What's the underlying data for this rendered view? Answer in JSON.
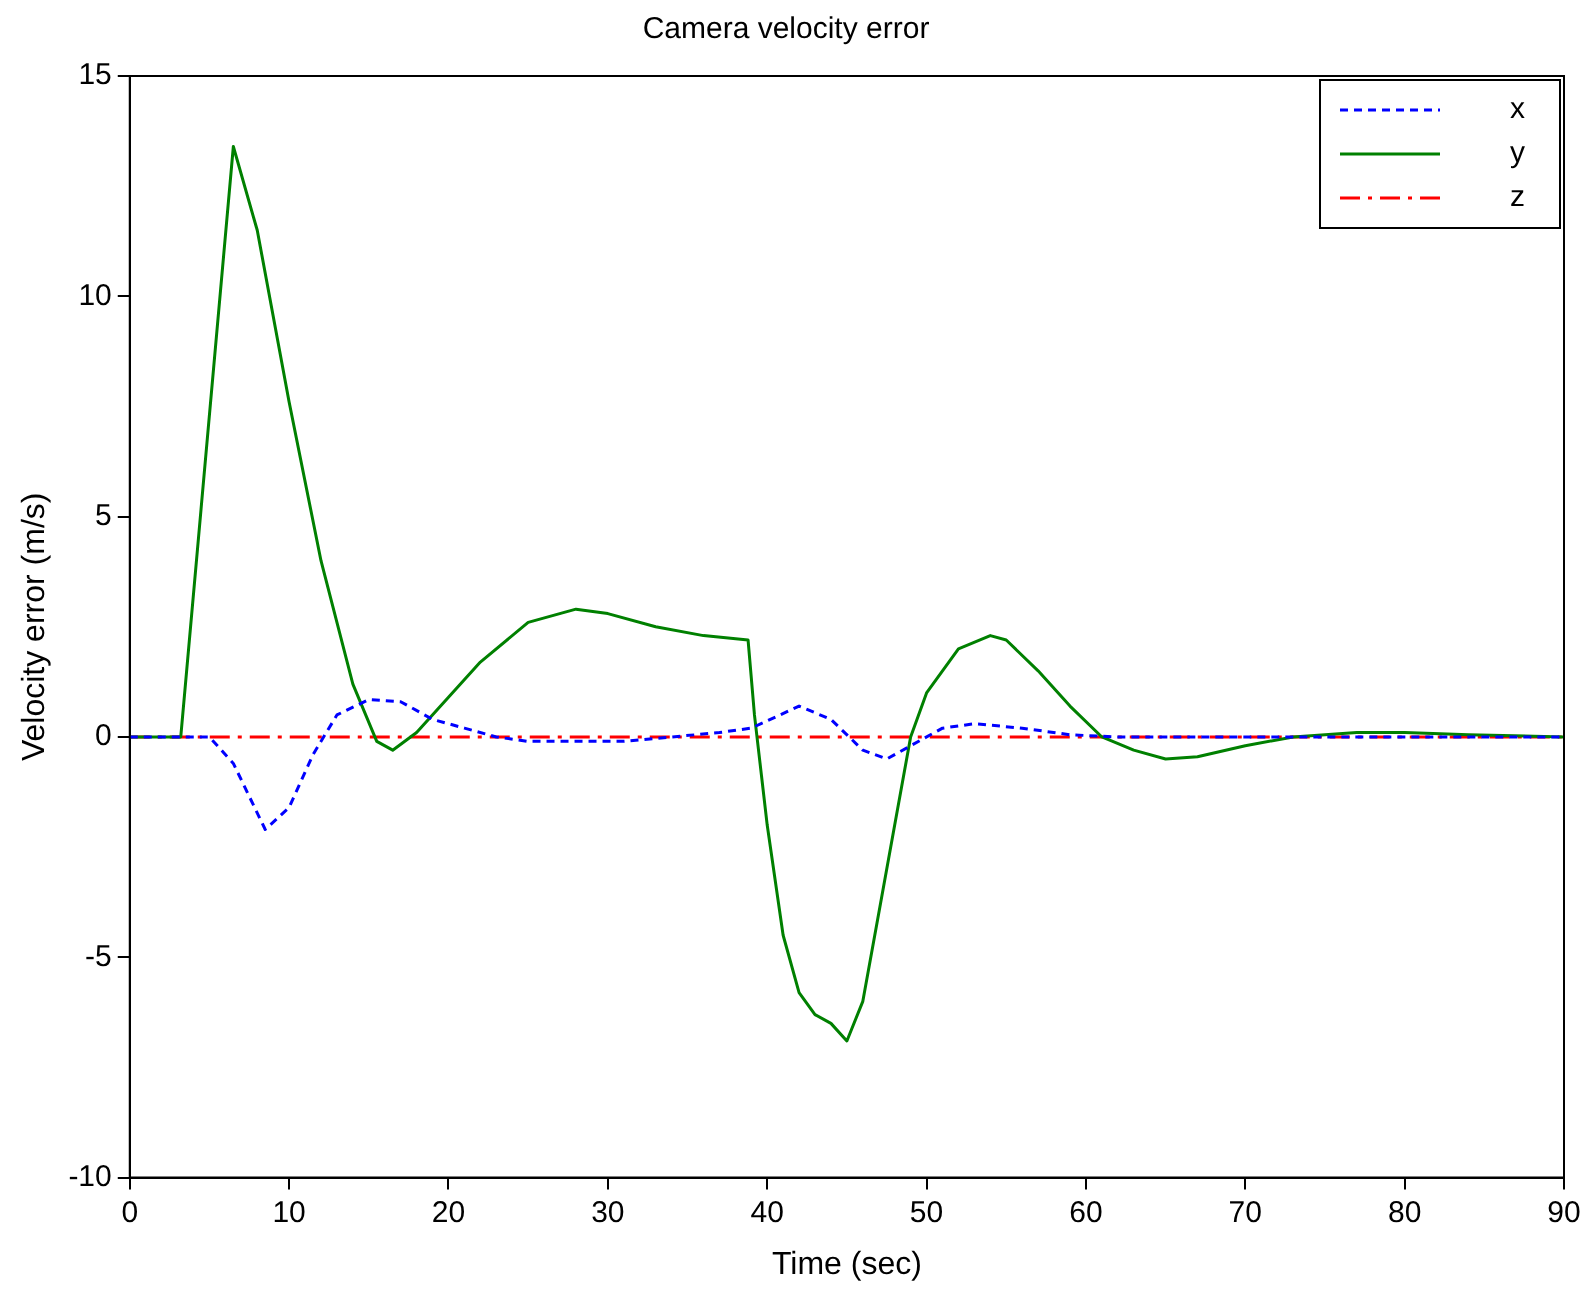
{
  "chart_data": {
    "type": "line",
    "title": "Camera velocity error",
    "xlabel": "Time (sec)",
    "ylabel": "Velocity error (m/s)",
    "xlim": [
      0,
      90
    ],
    "xticks": [
      0,
      10,
      20,
      30,
      40,
      50,
      60,
      70,
      80,
      90
    ],
    "ylim": [
      -10,
      15
    ],
    "yticks": [
      -10,
      -5,
      0,
      5,
      10,
      15
    ],
    "grid": false,
    "legend": "top right",
    "marker": "none",
    "series": [
      {
        "name": "x",
        "color": "#0000ff",
        "line_style": "dotted",
        "x": [
          0,
          5,
          6.5,
          8.5,
          10,
          11.5,
          13,
          15,
          17,
          19,
          21,
          23,
          25,
          28,
          31,
          34,
          37,
          39,
          42,
          44,
          46,
          47.5,
          49,
          51,
          53,
          56,
          59,
          62,
          90
        ],
        "values": [
          0,
          0,
          -0.6,
          -2.1,
          -1.6,
          -0.4,
          0.5,
          0.85,
          0.8,
          0.4,
          0.2,
          0,
          -0.1,
          -0.1,
          -0.1,
          0,
          0.1,
          0.2,
          0.7,
          0.4,
          -0.3,
          -0.5,
          -0.2,
          0.2,
          0.3,
          0.2,
          0.05,
          0,
          0
        ]
      },
      {
        "name": "y",
        "color": "#008000",
        "line_style": "solid",
        "x": [
          0,
          3.2,
          6.5,
          8,
          10,
          12,
          14,
          15.5,
          16.5,
          18,
          20,
          22,
          25,
          28,
          30,
          33,
          36,
          38.8,
          39.2,
          40,
          41,
          42,
          43,
          44,
          45,
          46,
          47,
          48,
          49,
          50,
          52,
          54,
          55,
          57,
          59,
          61,
          63,
          65,
          67,
          70,
          73,
          77,
          80,
          84,
          90
        ],
        "values": [
          0,
          0,
          13.4,
          11.5,
          7.6,
          4,
          1.2,
          -0.1,
          -0.3,
          0.1,
          0.9,
          1.7,
          2.6,
          2.9,
          2.8,
          2.5,
          2.3,
          2.2,
          0.5,
          -2,
          -4.5,
          -5.8,
          -6.3,
          -6.5,
          -6.9,
          -6,
          -4,
          -2,
          0,
          1,
          2,
          2.3,
          2.2,
          1.5,
          0.7,
          0,
          -0.3,
          -0.5,
          -0.45,
          -0.2,
          0,
          0.1,
          0.1,
          0.05,
          0
        ]
      },
      {
        "name": "z",
        "color": "#ff0000",
        "line_style": "dashed",
        "x": [
          0,
          90
        ],
        "values": [
          0,
          0
        ]
      }
    ]
  }
}
